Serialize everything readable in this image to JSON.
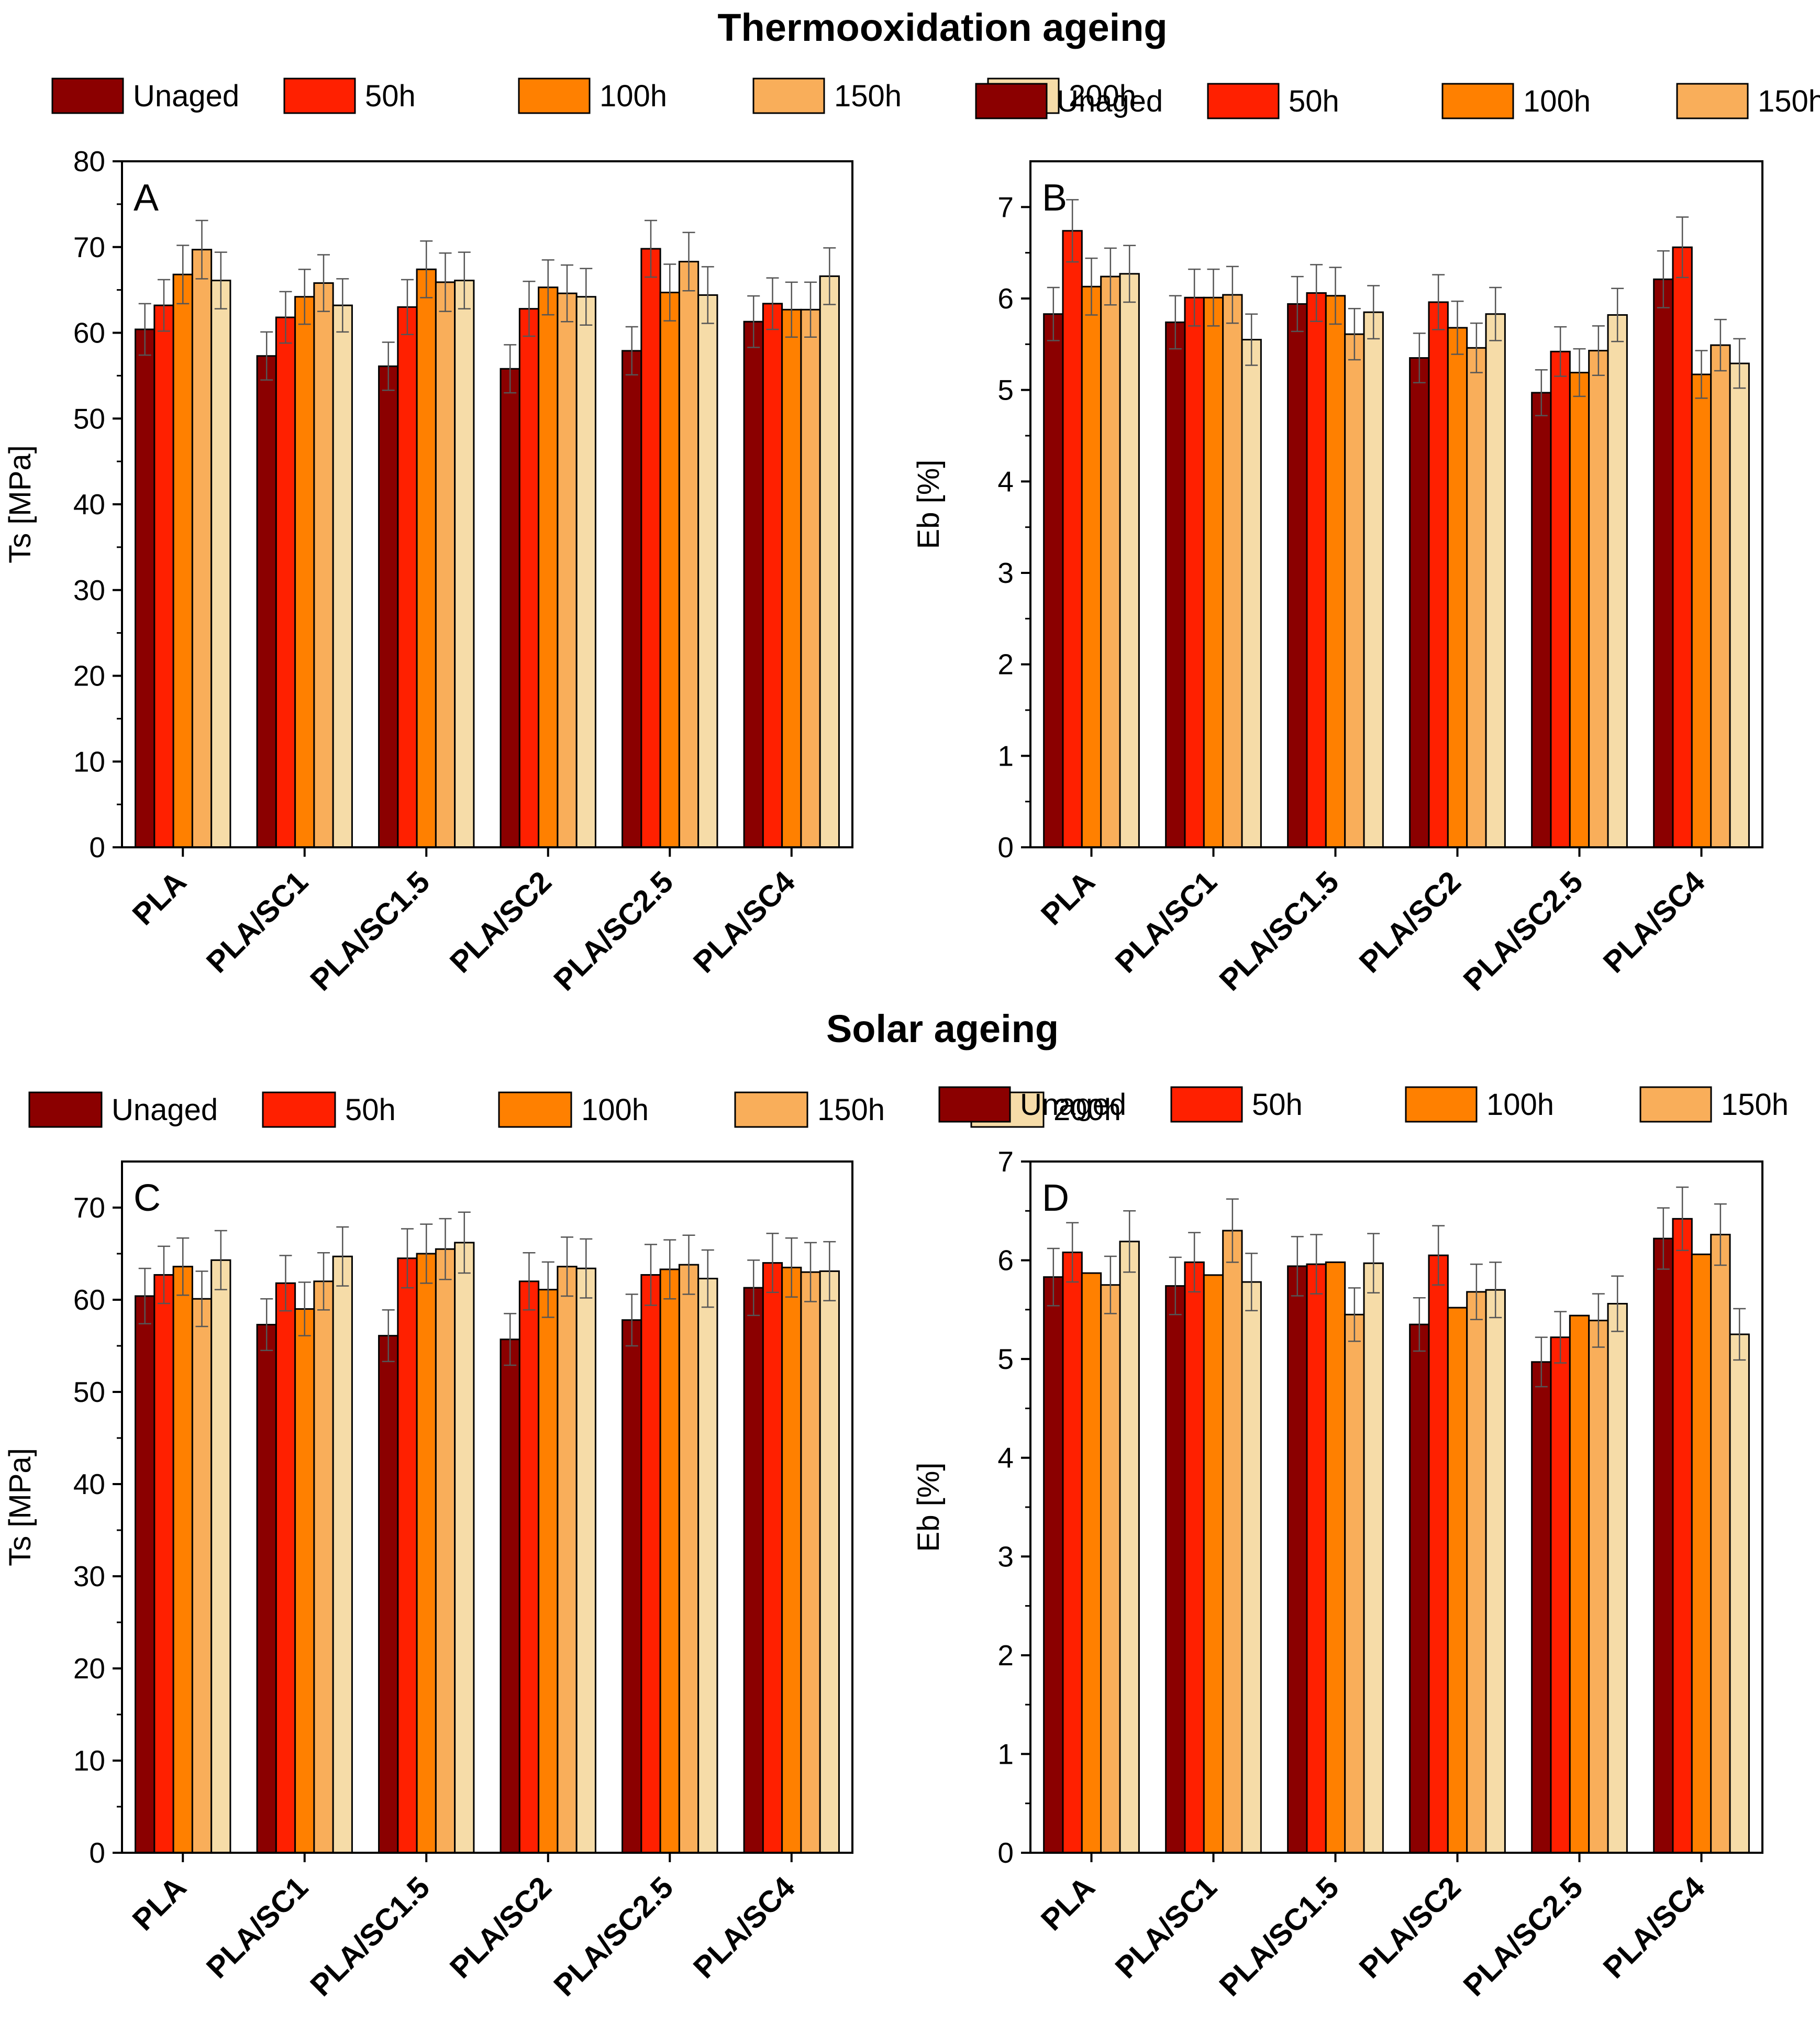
{
  "titles": {
    "thermo": "Thermooxidation ageing",
    "solar": "Solar ageing"
  },
  "legend": [
    "Unaged",
    "50h",
    "100h",
    "150h",
    "200h"
  ],
  "colors": [
    "#8B0000",
    "#FF2000",
    "#FF8000",
    "#F9AE5A",
    "#F6DCA8"
  ],
  "chart_data": [
    {
      "panel": "A",
      "group": "Thermooxidation ageing",
      "type": "bar",
      "ylabel": "Ts [MPa]",
      "ylim": [
        0,
        80
      ],
      "yticks": [
        0,
        10,
        20,
        30,
        40,
        50,
        60,
        70,
        80
      ],
      "categories": [
        "PLA",
        "PLA/SC1",
        "PLA/SC1.5",
        "PLA/SC2",
        "PLA/SC2.5",
        "PLA/SC4"
      ],
      "series": [
        {
          "name": "Unaged",
          "values": [
            60.4,
            57.3,
            56.1,
            55.8,
            57.9,
            61.3
          ],
          "errors": [
            3.0,
            2.8,
            2.8,
            2.8,
            2.8,
            3.0
          ]
        },
        {
          "name": "50h",
          "values": [
            63.2,
            61.8,
            63.0,
            62.8,
            69.8,
            63.4
          ],
          "errors": [
            3.0,
            3.0,
            3.2,
            3.2,
            3.3,
            3.0
          ]
        },
        {
          "name": "100h",
          "values": [
            66.8,
            64.2,
            67.4,
            65.3,
            64.7,
            62.7
          ],
          "errors": [
            3.4,
            3.2,
            3.3,
            3.2,
            3.3,
            3.2
          ]
        },
        {
          "name": "150h",
          "values": [
            69.7,
            65.8,
            65.9,
            64.6,
            68.3,
            62.7
          ],
          "errors": [
            3.4,
            3.3,
            3.4,
            3.3,
            3.4,
            3.2
          ]
        },
        {
          "name": "200h",
          "values": [
            66.1,
            63.2,
            66.1,
            64.2,
            64.4,
            66.6
          ],
          "errors": [
            3.3,
            3.1,
            3.3,
            3.3,
            3.3,
            3.3
          ]
        }
      ]
    },
    {
      "panel": "B",
      "group": "Thermooxidation ageing",
      "type": "bar",
      "ylabel": "Eb [%]",
      "ylim": [
        0,
        7.5
      ],
      "yticks": [
        0,
        1,
        2,
        3,
        4,
        5,
        6,
        7
      ],
      "categories": [
        "PLA",
        "PLA/SC1",
        "PLA/SC1.5",
        "PLA/SC2",
        "PLA/SC2.5",
        "PLA/SC4"
      ],
      "series": [
        {
          "name": "Unaged",
          "values": [
            5.83,
            5.74,
            5.94,
            5.35,
            4.97,
            6.21
          ],
          "errors": [
            0.29,
            0.29,
            0.3,
            0.27,
            0.25,
            0.31
          ]
        },
        {
          "name": "50h",
          "values": [
            6.74,
            6.01,
            6.06,
            5.96,
            5.42,
            6.56
          ],
          "errors": [
            0.34,
            0.31,
            0.31,
            0.3,
            0.27,
            0.33
          ]
        },
        {
          "name": "100h",
          "values": [
            6.13,
            6.01,
            6.03,
            5.68,
            5.19,
            5.17
          ],
          "errors": [
            0.31,
            0.31,
            0.31,
            0.29,
            0.26,
            0.26
          ]
        },
        {
          "name": "150h",
          "values": [
            6.24,
            6.04,
            5.61,
            5.46,
            5.43,
            5.49
          ],
          "errors": [
            0.31,
            0.31,
            0.28,
            0.27,
            0.27,
            0.28
          ]
        },
        {
          "name": "200h",
          "values": [
            6.27,
            5.55,
            5.85,
            5.83,
            5.82,
            5.29
          ],
          "errors": [
            0.31,
            0.28,
            0.29,
            0.29,
            0.29,
            0.27
          ]
        }
      ]
    },
    {
      "panel": "C",
      "group": "Solar ageing",
      "type": "bar",
      "ylabel": "Ts [MPa]",
      "ylim": [
        0,
        75
      ],
      "yticks": [
        0,
        10,
        20,
        30,
        40,
        50,
        60,
        70
      ],
      "categories": [
        "PLA",
        "PLA/SC1",
        "PLA/SC1.5",
        "PLA/SC2",
        "PLA/SC2.5",
        "PLA/SC4"
      ],
      "series": [
        {
          "name": "Unaged",
          "values": [
            60.4,
            57.3,
            56.1,
            55.7,
            57.8,
            61.3
          ],
          "errors": [
            3.0,
            2.8,
            2.8,
            2.8,
            2.8,
            3.0
          ]
        },
        {
          "name": "50h",
          "values": [
            62.7,
            61.8,
            64.5,
            62.0,
            62.7,
            64.0
          ],
          "errors": [
            3.1,
            3.0,
            3.2,
            3.1,
            3.3,
            3.2
          ]
        },
        {
          "name": "100h",
          "values": [
            63.6,
            59.0,
            65.0,
            61.1,
            63.3,
            63.5
          ],
          "errors": [
            3.1,
            2.9,
            3.2,
            3.0,
            3.2,
            3.2
          ]
        },
        {
          "name": "150h",
          "values": [
            60.1,
            62.0,
            65.5,
            63.6,
            63.8,
            63.0
          ],
          "errors": [
            3.0,
            3.1,
            3.3,
            3.2,
            3.2,
            3.2
          ]
        },
        {
          "name": "200h",
          "values": [
            64.3,
            64.7,
            66.2,
            63.4,
            62.3,
            63.1
          ],
          "errors": [
            3.2,
            3.2,
            3.3,
            3.2,
            3.1,
            3.2
          ]
        }
      ]
    },
    {
      "panel": "D",
      "group": "Solar ageing",
      "type": "bar",
      "ylabel": "Eb [%]",
      "ylim": [
        0,
        7
      ],
      "yticks": [
        0,
        1,
        2,
        3,
        4,
        5,
        6,
        7
      ],
      "categories": [
        "PLA",
        "PLA/SC1",
        "PLA/SC1.5",
        "PLA/SC2",
        "PLA/SC2.5",
        "PLA/SC4"
      ],
      "series": [
        {
          "name": "Unaged",
          "values": [
            5.83,
            5.74,
            5.94,
            5.35,
            4.97,
            6.22
          ],
          "errors": [
            0.29,
            0.29,
            0.3,
            0.27,
            0.25,
            0.31
          ]
        },
        {
          "name": "50h",
          "values": [
            6.08,
            5.98,
            5.96,
            6.05,
            5.22,
            6.42
          ],
          "errors": [
            0.3,
            0.3,
            0.3,
            0.3,
            0.26,
            0.32
          ]
        },
        {
          "name": "100h",
          "values": [
            5.87,
            5.85,
            5.98,
            5.52,
            5.44,
            6.06
          ],
          "errors": [
            0,
            0,
            0,
            0,
            0,
            0
          ]
        },
        {
          "name": "150h",
          "values": [
            5.75,
            6.3,
            5.45,
            5.68,
            5.39,
            6.26
          ],
          "errors": [
            0.29,
            0.32,
            0.27,
            0.28,
            0.27,
            0.31
          ]
        },
        {
          "name": "200h",
          "values": [
            6.19,
            5.78,
            5.97,
            5.7,
            5.56,
            5.25
          ],
          "errors": [
            0.31,
            0.29,
            0.3,
            0.28,
            0.28,
            0.26
          ]
        }
      ]
    }
  ]
}
